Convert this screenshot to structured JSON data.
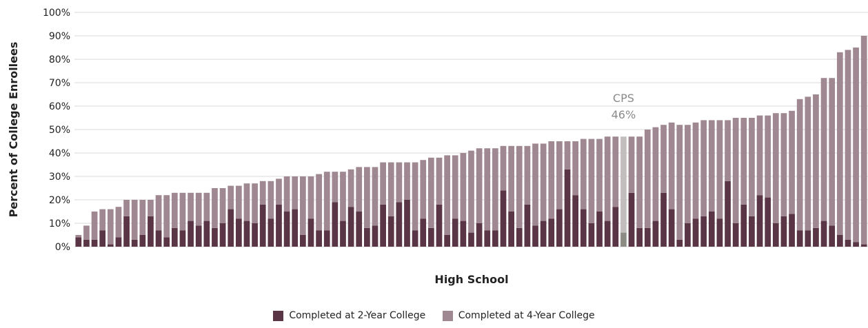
{
  "colors": {
    "two_year": "#5a3545",
    "four_year": "#9f8891",
    "cps_two_year": "#8c8c84",
    "cps_four_year": "#c2bebd",
    "grid": "#d9d9d9",
    "annotation": "#8a8a8a"
  },
  "chart_data": {
    "type": "bar",
    "stacked": true,
    "xlabel": "High School",
    "ylabel": "Percent of College Enrollees",
    "ylim": [
      0,
      100
    ],
    "yticks": [
      "0%",
      "10%",
      "20%",
      "30%",
      "40%",
      "50%",
      "60%",
      "70%",
      "80%",
      "90%",
      "100%"
    ],
    "grid": true,
    "legend_position": "bottom-center",
    "annotation": {
      "line1": "CPS",
      "line2": "46%",
      "bar_index": 68
    },
    "highlight_index": 68,
    "series": [
      {
        "name": "Completed at 2-Year College",
        "values": [
          4,
          3,
          3,
          7,
          1,
          4,
          13,
          3,
          5,
          13,
          7,
          4,
          8,
          7,
          11,
          9,
          11,
          8,
          10,
          16,
          12,
          11,
          10,
          18,
          12,
          18,
          15,
          16,
          5,
          12,
          7,
          7,
          19,
          11,
          17,
          15,
          8,
          9,
          18,
          13,
          19,
          20,
          7,
          12,
          8,
          18,
          5,
          12,
          11,
          6,
          10,
          7,
          7,
          24,
          15,
          8,
          18,
          9,
          11,
          12,
          16,
          33,
          22,
          16,
          10,
          15,
          11,
          17,
          6,
          23,
          8,
          8,
          11,
          23,
          16,
          3,
          10,
          12,
          13,
          15,
          12,
          28,
          10,
          18,
          13,
          22,
          21,
          10,
          13,
          14,
          7,
          7,
          8,
          11,
          9,
          5,
          3,
          2,
          1
        ]
      },
      {
        "name": "Completed at 4-Year College",
        "values": [
          1,
          6,
          12,
          9,
          15,
          13,
          7,
          17,
          15,
          7,
          15,
          18,
          15,
          16,
          12,
          14,
          12,
          17,
          15,
          10,
          14,
          16,
          17,
          10,
          16,
          11,
          15,
          14,
          25,
          18,
          24,
          25,
          13,
          21,
          16,
          19,
          26,
          25,
          18,
          23,
          17,
          16,
          29,
          25,
          30,
          20,
          34,
          27,
          29,
          35,
          32,
          35,
          35,
          19,
          28,
          35,
          25,
          35,
          33,
          33,
          29,
          12,
          23,
          30,
          36,
          31,
          36,
          30,
          41,
          24,
          39,
          42,
          40,
          29,
          37,
          49,
          42,
          41,
          41,
          39,
          42,
          26,
          45,
          37,
          42,
          34,
          35,
          47,
          44,
          44,
          56,
          57,
          57,
          61,
          63,
          78,
          81,
          83,
          89
        ]
      }
    ]
  }
}
